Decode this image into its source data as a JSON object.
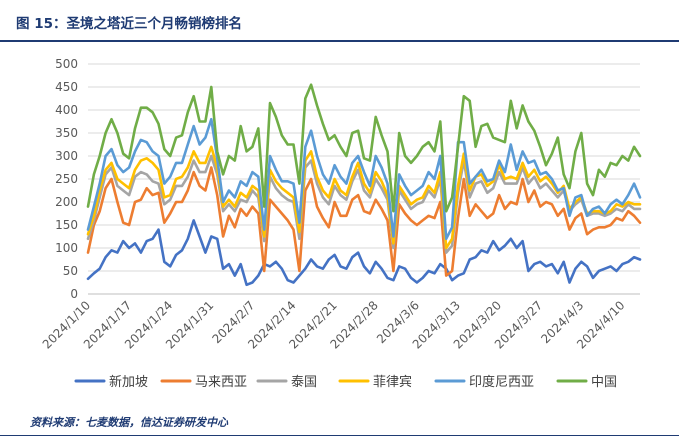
{
  "figure": {
    "title": "图 15：圣境之塔近三个月畅销榜排名",
    "source": "资料来源：七麦数据，信达证券研发中心"
  },
  "colors": {
    "title": "#1f3b73",
    "axis_text": "#595959",
    "grid": "#d9d9d9"
  },
  "chart_data": {
    "type": "line",
    "title": "",
    "xlabel": "",
    "ylabel": "",
    "ylim": [
      0,
      500
    ],
    "yticks": [
      0,
      50,
      100,
      150,
      200,
      250,
      300,
      350,
      400,
      450,
      500
    ],
    "grid": "horizontal",
    "legend_position": "bottom",
    "start_date": "2024-01-10",
    "end_date": "2024-04-10",
    "x_tick_labels": [
      "2024/1/10",
      "2024/1/17",
      "2024/1/24",
      "2024/1/31",
      "2024/2/7",
      "2024/2/14",
      "2024/2/21",
      "2024/2/28",
      "2024/3/6",
      "2024/3/13",
      "2024/3/20",
      "2024/3/27",
      "2024/4/3",
      "2024/4/10"
    ],
    "series": [
      {
        "name": "新加坡",
        "color": "#4472C4",
        "values": [
          33,
          45,
          55,
          80,
          95,
          90,
          115,
          100,
          110,
          90,
          115,
          120,
          140,
          70,
          60,
          85,
          95,
          120,
          160,
          125,
          90,
          125,
          120,
          55,
          65,
          40,
          65,
          20,
          25,
          40,
          65,
          60,
          70,
          55,
          30,
          25,
          40,
          55,
          75,
          60,
          55,
          75,
          85,
          60,
          55,
          80,
          90,
          60,
          45,
          70,
          55,
          35,
          30,
          60,
          55,
          35,
          25,
          35,
          50,
          45,
          65,
          55,
          30,
          40,
          45,
          75,
          80,
          95,
          90,
          115,
          95,
          105,
          120,
          100,
          115,
          50,
          65,
          70,
          60,
          65,
          45,
          70,
          25,
          55,
          70,
          60,
          35,
          50,
          55,
          60,
          50,
          65,
          70,
          80,
          75
        ]
      },
      {
        "name": "马来西亚",
        "color": "#ED7D31",
        "values": [
          90,
          150,
          180,
          230,
          250,
          200,
          155,
          150,
          200,
          205,
          230,
          215,
          220,
          155,
          175,
          200,
          200,
          225,
          265,
          235,
          225,
          275,
          215,
          125,
          170,
          145,
          185,
          170,
          190,
          175,
          50,
          205,
          190,
          175,
          160,
          140,
          50,
          225,
          250,
          190,
          165,
          145,
          200,
          170,
          170,
          205,
          215,
          180,
          175,
          205,
          185,
          160,
          50,
          195,
          175,
          160,
          150,
          160,
          170,
          165,
          200,
          40,
          50,
          165,
          250,
          170,
          195,
          180,
          165,
          175,
          215,
          185,
          200,
          195,
          250,
          200,
          225,
          190,
          200,
          195,
          170,
          185,
          140,
          165,
          175,
          130,
          140,
          145,
          145,
          150,
          165,
          160,
          180,
          170,
          155
        ]
      },
      {
        "name": "泰国",
        "color": "#A5A5A5",
        "values": [
          120,
          160,
          210,
          260,
          275,
          235,
          225,
          215,
          255,
          265,
          260,
          245,
          240,
          195,
          205,
          235,
          235,
          255,
          290,
          265,
          265,
          300,
          260,
          180,
          195,
          180,
          205,
          200,
          225,
          210,
          115,
          255,
          230,
          215,
          205,
          200,
          120,
          275,
          290,
          240,
          210,
          195,
          235,
          215,
          205,
          245,
          270,
          225,
          210,
          250,
          230,
          205,
          100,
          225,
          205,
          185,
          195,
          200,
          225,
          210,
          250,
          90,
          105,
          220,
          290,
          210,
          240,
          245,
          220,
          230,
          265,
          240,
          240,
          240,
          275,
          240,
          255,
          230,
          240,
          225,
          210,
          225,
          180,
          195,
          205,
          170,
          175,
          175,
          170,
          175,
          185,
          180,
          195,
          185,
          185
        ]
      },
      {
        "name": "菲律宾",
        "color": "#FFC000",
        "values": [
          130,
          170,
          225,
          270,
          285,
          250,
          240,
          230,
          270,
          290,
          295,
          285,
          270,
          210,
          215,
          250,
          255,
          275,
          310,
          285,
          285,
          320,
          275,
          190,
          205,
          190,
          220,
          210,
          235,
          225,
          125,
          270,
          245,
          230,
          220,
          210,
          135,
          290,
          310,
          255,
          225,
          210,
          250,
          225,
          215,
          255,
          285,
          240,
          220,
          265,
          245,
          215,
          110,
          235,
          215,
          195,
          205,
          210,
          235,
          220,
          265,
          100,
          120,
          235,
          305,
          225,
          255,
          260,
          235,
          245,
          280,
          250,
          255,
          250,
          285,
          255,
          270,
          245,
          255,
          240,
          220,
          235,
          185,
          200,
          210,
          175,
          180,
          180,
          175,
          180,
          195,
          190,
          200,
          195,
          195
        ]
      },
      {
        "name": "印度尼西亚",
        "color": "#5B9BD5",
        "values": [
          140,
          190,
          240,
          300,
          315,
          280,
          265,
          275,
          310,
          335,
          330,
          310,
          300,
          240,
          255,
          285,
          285,
          325,
          365,
          325,
          340,
          380,
          295,
          200,
          225,
          210,
          245,
          235,
          265,
          255,
          140,
          300,
          270,
          245,
          245,
          240,
          155,
          320,
          355,
          300,
          260,
          240,
          280,
          255,
          240,
          285,
          300,
          265,
          235,
          300,
          275,
          240,
          125,
          260,
          235,
          215,
          225,
          235,
          265,
          250,
          300,
          120,
          145,
          330,
          330,
          240,
          255,
          270,
          245,
          250,
          290,
          265,
          325,
          270,
          310,
          285,
          290,
          260,
          265,
          250,
          225,
          230,
          170,
          210,
          215,
          170,
          185,
          190,
          175,
          195,
          205,
          195,
          215,
          240,
          210
        ]
      },
      {
        "name": "中国",
        "color": "#70AD47",
        "values": [
          190,
          260,
          300,
          350,
          380,
          350,
          305,
          295,
          360,
          405,
          405,
          395,
          370,
          315,
          300,
          340,
          345,
          395,
          430,
          375,
          375,
          450,
          310,
          260,
          300,
          290,
          365,
          310,
          320,
          360,
          190,
          415,
          385,
          345,
          325,
          325,
          240,
          425,
          455,
          410,
          370,
          335,
          345,
          320,
          300,
          350,
          355,
          295,
          290,
          385,
          345,
          310,
          180,
          350,
          300,
          285,
          300,
          320,
          330,
          310,
          375,
          180,
          210,
          320,
          430,
          420,
          320,
          365,
          370,
          340,
          335,
          330,
          420,
          360,
          410,
          375,
          355,
          320,
          280,
          305,
          340,
          260,
          230,
          310,
          350,
          240,
          215,
          270,
          255,
          285,
          280,
          300,
          290,
          320,
          300
        ]
      }
    ]
  }
}
